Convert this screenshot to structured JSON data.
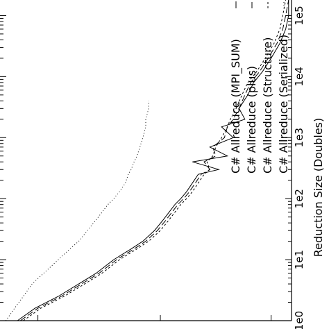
{
  "chart_data": {
    "type": "line",
    "rotation": "rotated 90 degrees clockwise",
    "x_scale": "log",
    "xlabel": "Reduction Size (Doubles)",
    "ylabel": "",
    "xlim": [
      1,
      180000
    ],
    "x_ticks": [
      {
        "value": 1,
        "label": "1e0"
      },
      {
        "value": 10,
        "label": "1e1"
      },
      {
        "value": 100,
        "label": "1e2"
      },
      {
        "value": 1000,
        "label": "1e3"
      },
      {
        "value": 10000,
        "label": "1e4"
      },
      {
        "value": 100000,
        "label": "1e5"
      }
    ],
    "ylim": [
      0,
      1
    ],
    "grid": false,
    "legend_position": "top-right",
    "series": [
      {
        "name": "C# Allreduce (MPI_SUM)",
        "dash": "",
        "x": [
          1,
          1.6,
          2.5,
          4,
          6,
          10,
          15,
          20,
          30,
          45,
          60,
          80,
          100,
          130,
          180,
          250,
          300,
          400,
          500,
          700,
          1000,
          1500,
          2000,
          3000,
          5000,
          8000,
          12000,
          20000,
          35000,
          60000,
          100000,
          180000
        ],
        "y": [
          0.06,
          0.12,
          0.2,
          0.27,
          0.33,
          0.39,
          0.45,
          0.49,
          0.53,
          0.56,
          0.58,
          0.6,
          0.62,
          0.64,
          0.66,
          0.68,
          0.75,
          0.66,
          0.78,
          0.72,
          0.8,
          0.76,
          0.84,
          0.82,
          0.85,
          0.87,
          0.9,
          0.93,
          0.96,
          0.98,
          0.99,
          0.99
        ]
      },
      {
        "name": "C# Allreduce (plus)",
        "dash": "9,4",
        "x": [
          1,
          1.6,
          2.5,
          4,
          6,
          10,
          15,
          20,
          30,
          45,
          60,
          80,
          100,
          130,
          180,
          250,
          300,
          400,
          500,
          700,
          1000,
          1500,
          2000,
          3000,
          5000,
          8000,
          12000,
          20000,
          35000,
          60000,
          100000,
          180000
        ],
        "y": [
          0.07,
          0.13,
          0.21,
          0.28,
          0.34,
          0.4,
          0.46,
          0.5,
          0.54,
          0.57,
          0.59,
          0.61,
          0.63,
          0.65,
          0.67,
          0.69,
          0.72,
          0.7,
          0.74,
          0.73,
          0.77,
          0.78,
          0.8,
          0.82,
          0.84,
          0.86,
          0.89,
          0.92,
          0.95,
          0.97,
          0.98,
          0.99
        ]
      },
      {
        "name": "C# Allreduce (Structure)",
        "dash": "3,3",
        "x": [
          1,
          1.6,
          2.5,
          4,
          6,
          10,
          15,
          20,
          30,
          45,
          60,
          80,
          100,
          130,
          180,
          250,
          300,
          400,
          500,
          700,
          1000,
          1500,
          2000,
          3000,
          5000,
          8000,
          12000,
          20000,
          35000,
          60000,
          100000,
          180000
        ],
        "y": [
          0.08,
          0.14,
          0.22,
          0.29,
          0.35,
          0.41,
          0.47,
          0.51,
          0.55,
          0.58,
          0.6,
          0.62,
          0.64,
          0.66,
          0.68,
          0.7,
          0.72,
          0.71,
          0.73,
          0.74,
          0.76,
          0.78,
          0.79,
          0.81,
          0.83,
          0.85,
          0.88,
          0.91,
          0.94,
          0.96,
          0.97,
          0.98
        ]
      },
      {
        "name": "C# Allreduce (Serialized)",
        "dash": "1,3",
        "x": [
          1,
          1.6,
          2.5,
          4,
          6,
          10,
          15,
          20,
          30,
          45,
          60,
          80,
          100,
          130,
          180,
          250,
          300,
          400,
          500,
          700,
          1000,
          1500,
          2000,
          3000,
          4000
        ],
        "y": [
          0.02,
          0.05,
          0.08,
          0.11,
          0.15,
          0.2,
          0.24,
          0.27,
          0.3,
          0.33,
          0.35,
          0.37,
          0.39,
          0.41,
          0.43,
          0.44,
          0.45,
          0.46,
          0.47,
          0.48,
          0.49,
          0.5,
          0.5,
          0.51,
          0.51
        ]
      }
    ]
  }
}
